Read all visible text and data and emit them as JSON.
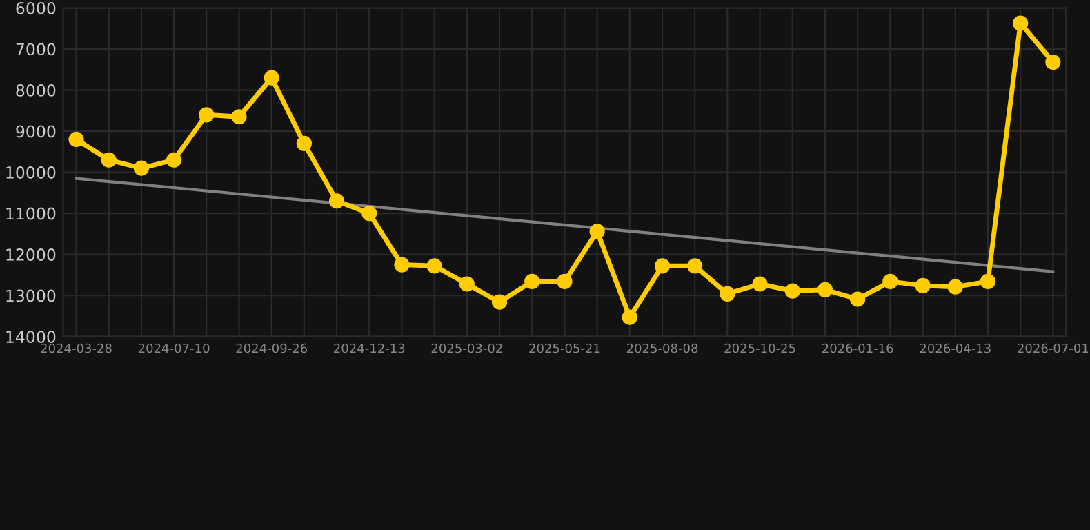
{
  "chart_data": {
    "type": "line",
    "categories": [
      "2024-03-28",
      null,
      null,
      "2024-07-10",
      null,
      null,
      "2024-09-26",
      null,
      null,
      "2024-12-13",
      null,
      null,
      "2025-03-02",
      null,
      null,
      "2025-05-21",
      null,
      null,
      "2025-08-08",
      null,
      null,
      "2025-10-25",
      null,
      null,
      "2026-01-16",
      null,
      null,
      "2026-04-13",
      null,
      null,
      "2026-07-01"
    ],
    "series": [
      {
        "color": "#ffcc00",
        "marker": "circle",
        "values": [
          9200,
          9700,
          9900,
          9700,
          8600,
          8650,
          7700,
          9300,
          10700,
          11000,
          12250,
          12280,
          12720,
          13160,
          12660,
          12660,
          11440,
          13530,
          12280,
          12280,
          12960,
          12720,
          12890,
          12860,
          13090,
          12660,
          12760,
          12790,
          12660,
          6370,
          7320
        ]
      },
      {
        "color": "#808080",
        "marker": "none",
        "values": [
          10150,
          null,
          null,
          null,
          null,
          null,
          null,
          null,
          null,
          null,
          null,
          null,
          null,
          null,
          null,
          null,
          null,
          null,
          null,
          null,
          null,
          null,
          null,
          null,
          null,
          null,
          null,
          null,
          null,
          null,
          12420
        ]
      }
    ],
    "ylim": [
      14000,
      6000
    ],
    "yticks": [
      6000,
      7000,
      8000,
      9000,
      10000,
      11000,
      12000,
      13000,
      14000
    ],
    "grid": true
  }
}
